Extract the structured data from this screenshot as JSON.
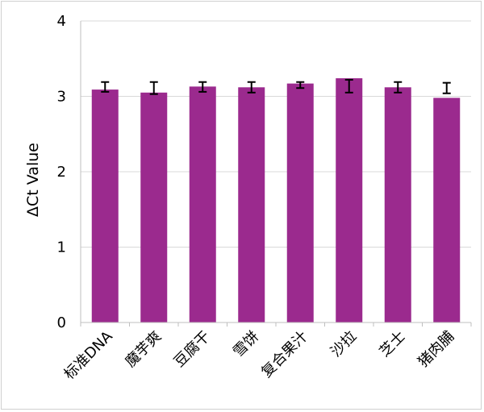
{
  "chart_data": {
    "type": "bar",
    "title": "",
    "xlabel": "",
    "ylabel": "ΔCt Value",
    "ylim": [
      0,
      4
    ],
    "yticks": [
      0,
      1,
      2,
      3,
      4
    ],
    "grid": true,
    "bar_color": "#9b2a8e",
    "categories": [
      "标准DNA",
      "魔芋爽",
      "豆腐干",
      "雪饼",
      "复合果汁",
      "沙拉",
      "芝士",
      "猪肉脯"
    ],
    "values": [
      3.09,
      3.05,
      3.13,
      3.12,
      3.17,
      3.24,
      3.12,
      2.98
    ],
    "error_bars": [
      [
        3.06,
        3.19
      ],
      [
        3.03,
        3.19
      ],
      [
        3.06,
        3.19
      ],
      [
        3.05,
        3.19
      ],
      [
        3.11,
        3.19
      ],
      [
        3.05,
        3.22
      ],
      [
        3.05,
        3.19
      ],
      [
        3.04,
        3.18
      ]
    ]
  }
}
